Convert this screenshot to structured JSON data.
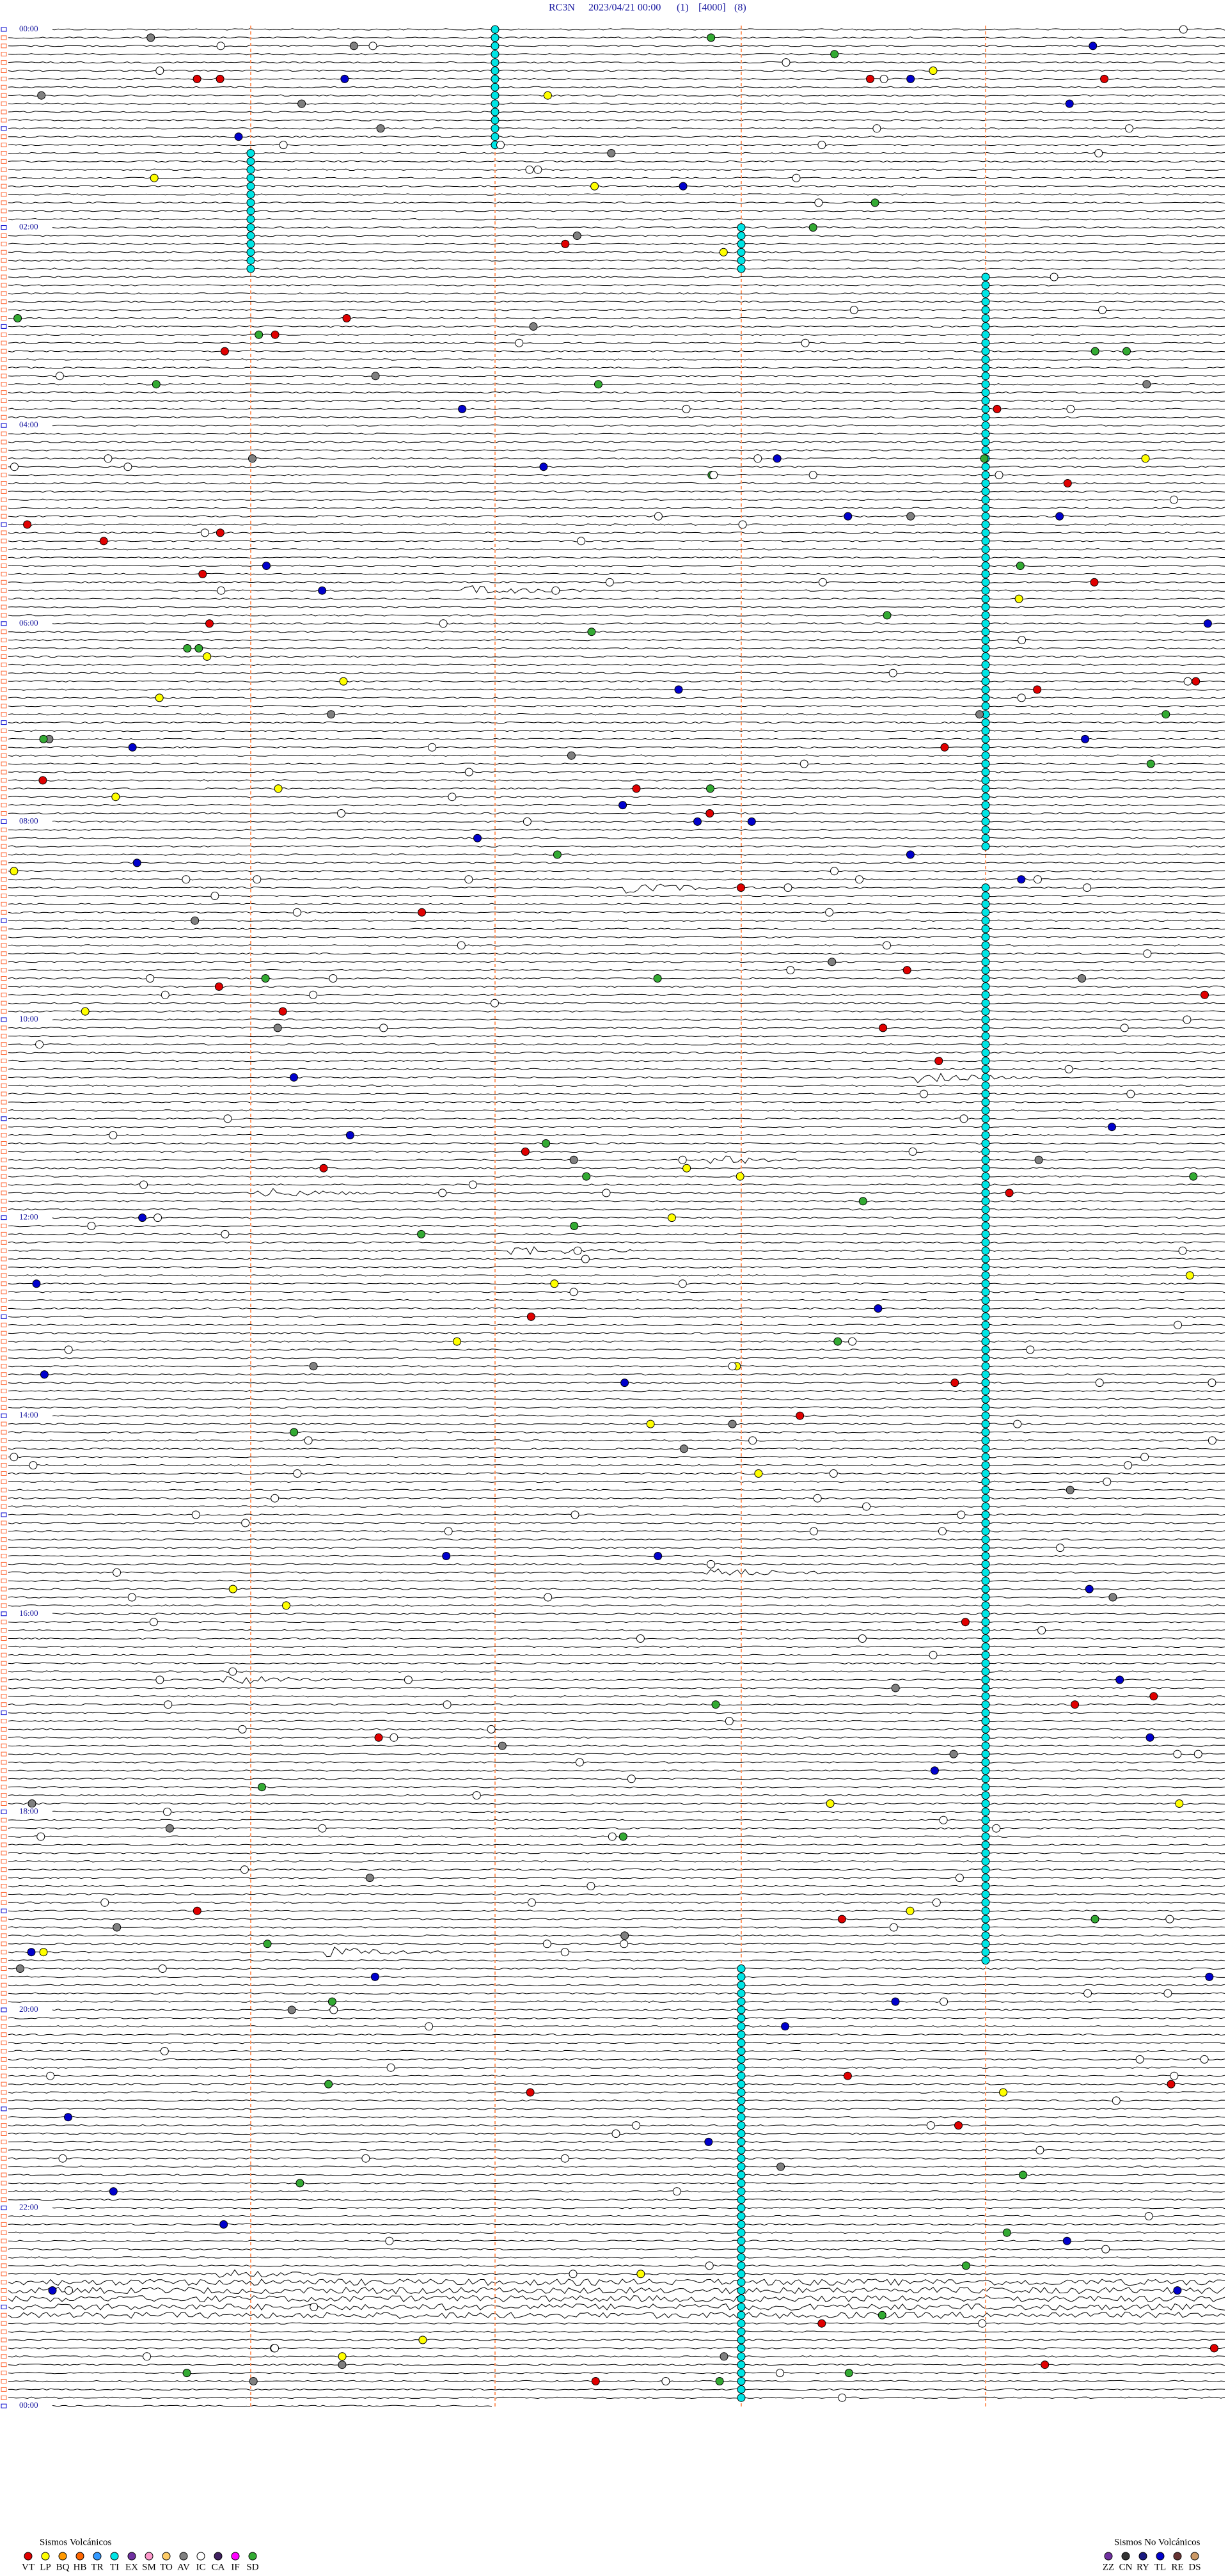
{
  "header": {
    "station": "RC3N",
    "datetime": "2023/04/21 00:00",
    "gain": "(1)",
    "scale": "[4000]",
    "filter": "(8)"
  },
  "time_labels": [
    "00:00",
    "02:00",
    "04:00",
    "06:00",
    "08:00",
    "10:00",
    "12:00",
    "14:00",
    "16:00",
    "18:00",
    "20:00",
    "22:00",
    "00:00"
  ],
  "legend": {
    "volcanic": {
      "title": "Sismos Volcánicos",
      "items": [
        {
          "code": "VT",
          "color": "#e00000"
        },
        {
          "code": "LP",
          "color": "#ffff00"
        },
        {
          "code": "BQ",
          "color": "#ff9900"
        },
        {
          "code": "HB",
          "color": "#ff6600"
        },
        {
          "code": "TR",
          "color": "#3399ff"
        },
        {
          "code": "TI",
          "color": "#00e5e5"
        },
        {
          "code": "EX",
          "color": "#7030a0"
        },
        {
          "code": "SM",
          "color": "#ff99cc"
        },
        {
          "code": "TO",
          "color": "#ffcc66"
        },
        {
          "code": "AV",
          "color": "#808080"
        },
        {
          "code": "IC",
          "color": "#ffffff"
        },
        {
          "code": "CA",
          "color": "#402060"
        },
        {
          "code": "IF",
          "color": "#ff00ff"
        },
        {
          "code": "SD",
          "color": "#33aa33"
        }
      ]
    },
    "non_volcanic": {
      "title": "Sismos No Volcánicos",
      "items": [
        {
          "code": "ZZ",
          "color": "#7030a0"
        },
        {
          "code": "CN",
          "color": "#333333"
        },
        {
          "code": "RY",
          "color": "#1a1a80"
        },
        {
          "code": "TL",
          "color": "#0000cc"
        },
        {
          "code": "RE",
          "color": "#663333"
        },
        {
          "code": "DS",
          "color": "#cc9966"
        }
      ]
    }
  }
}
